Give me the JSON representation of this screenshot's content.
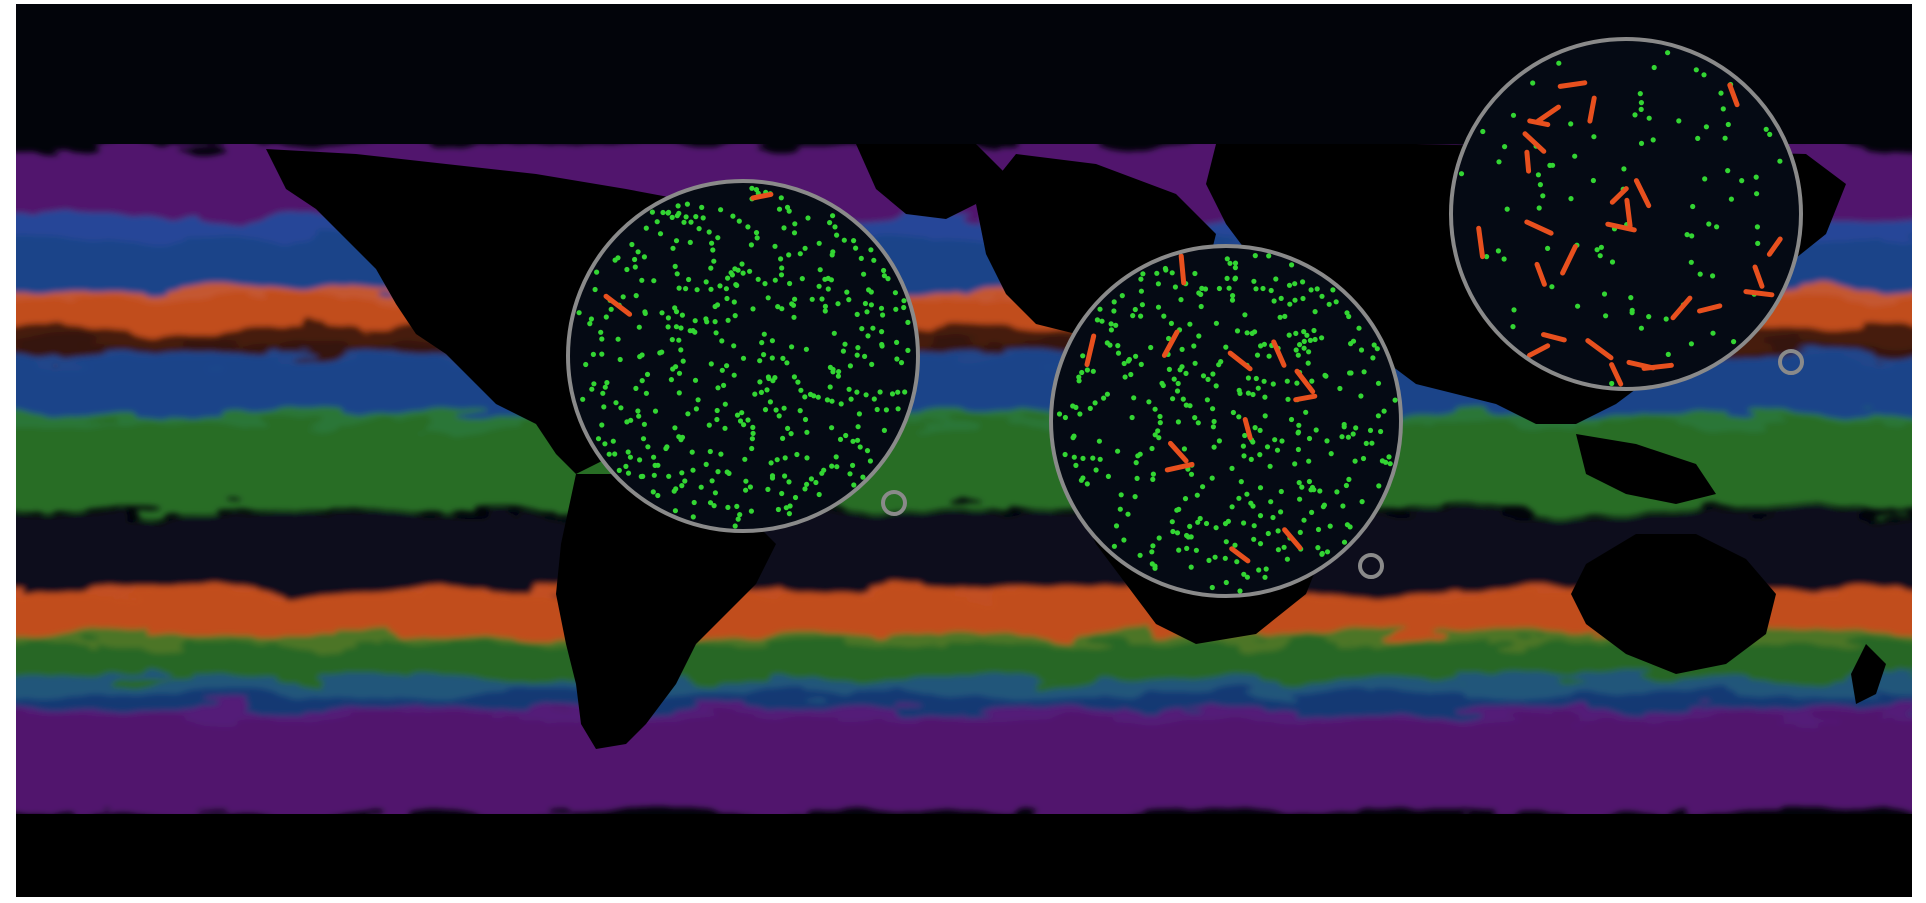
{
  "map": {
    "projection": "equirectangular",
    "theme": "dark",
    "colors": {
      "background": "#02040a",
      "land": "#000000",
      "polar": "#5a1a78",
      "blue": "#1e4fa0",
      "green": "#2f7f2a",
      "orange": "#e35a22",
      "dark_band": "#0b1020",
      "lens_fill": "#050a14",
      "lens_ring": "#8a8a8a",
      "dot": "#33d633",
      "dash": "#e8501e"
    }
  },
  "lenses": [
    {
      "name": "north-atlantic-lens",
      "dot_count": 420,
      "dash_count": 2
    },
    {
      "name": "west-africa-lens",
      "dot_count": 380,
      "dash_count": 12
    },
    {
      "name": "west-pacific-lens",
      "dot_count": 90,
      "dash_count": 26
    }
  ],
  "markers": [
    {
      "name": "marker-north-atlantic"
    },
    {
      "name": "marker-west-africa"
    },
    {
      "name": "marker-west-pacific"
    }
  ]
}
